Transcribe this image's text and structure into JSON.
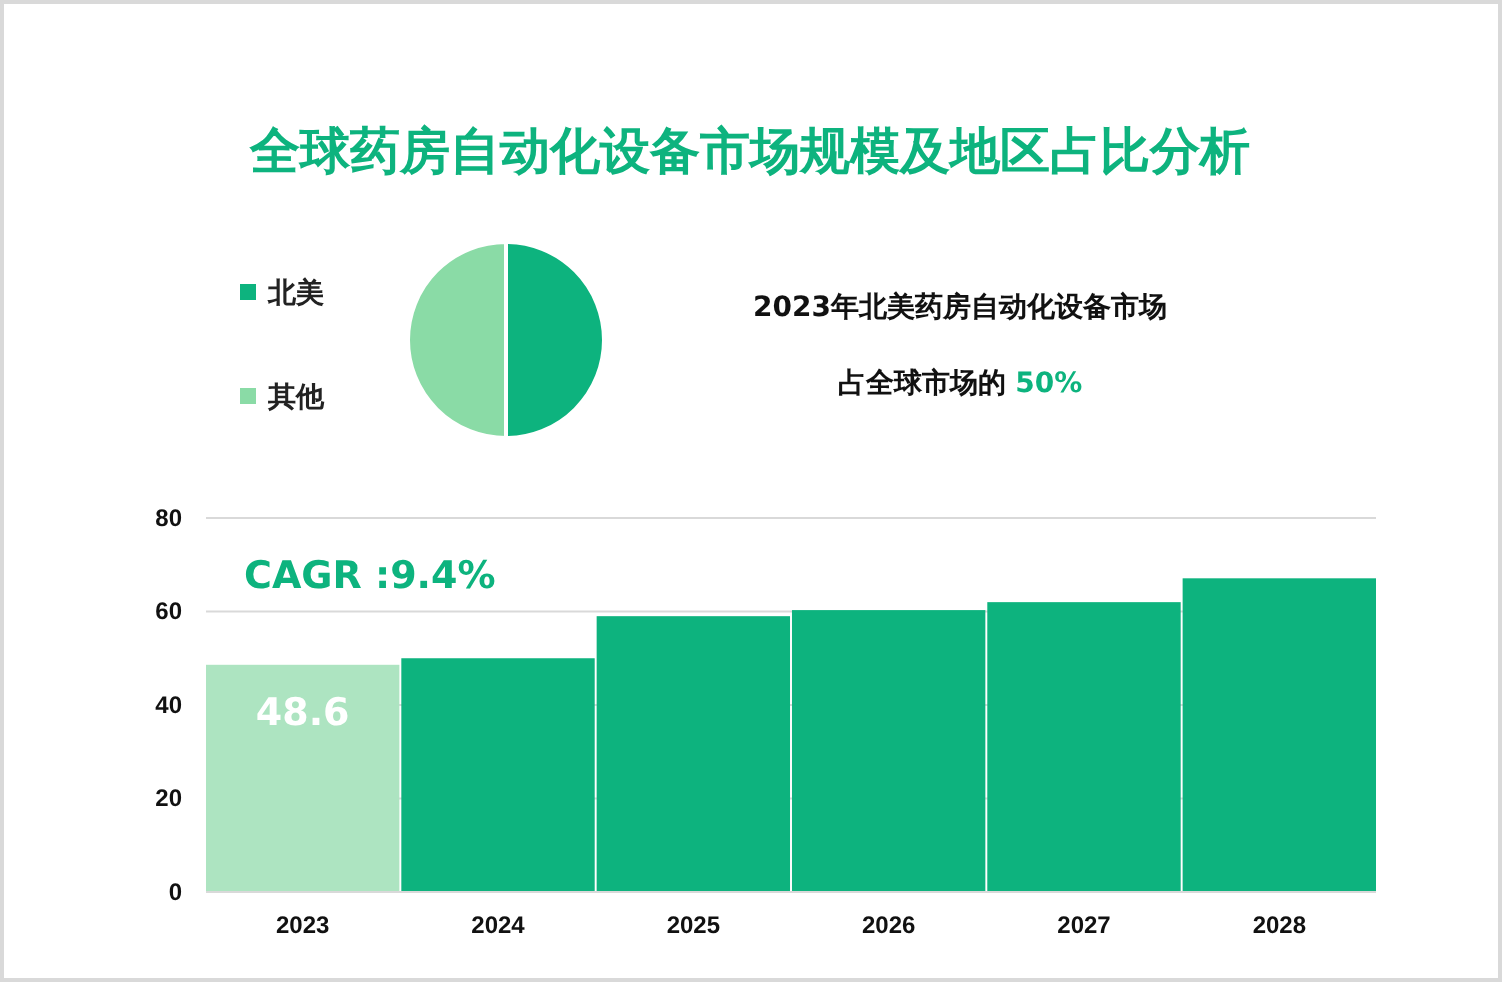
{
  "chart_data": [
    {
      "type": "pie",
      "title": "全球药房自动化设备市场规模及地区占比分析",
      "categories": [
        "北美",
        "其他"
      ],
      "values": [
        50,
        50
      ],
      "colors": [
        "#0db37e",
        "#8adba6"
      ],
      "legend": "left",
      "annotations": [
        "2023年北美药房自动化设备市场",
        "占全球市场的 50%"
      ]
    },
    {
      "type": "bar",
      "categories": [
        "2023",
        "2024",
        "2025",
        "2026",
        "2027",
        "2028"
      ],
      "values": [
        48.6,
        50.0,
        59.0,
        60.3,
        62.0,
        67.1
      ],
      "colors": [
        "#ade4c1",
        "#0db37e",
        "#0db37e",
        "#0db37e",
        "#0db37e",
        "#0db37e"
      ],
      "value_labels": [
        "48.6",
        null,
        null,
        null,
        null,
        null
      ],
      "ylim": [
        0,
        80
      ],
      "yticks": [
        0,
        20,
        40,
        60,
        80
      ],
      "grid": "y",
      "annotations": [
        "CAGR :9.4%"
      ]
    }
  ]
}
